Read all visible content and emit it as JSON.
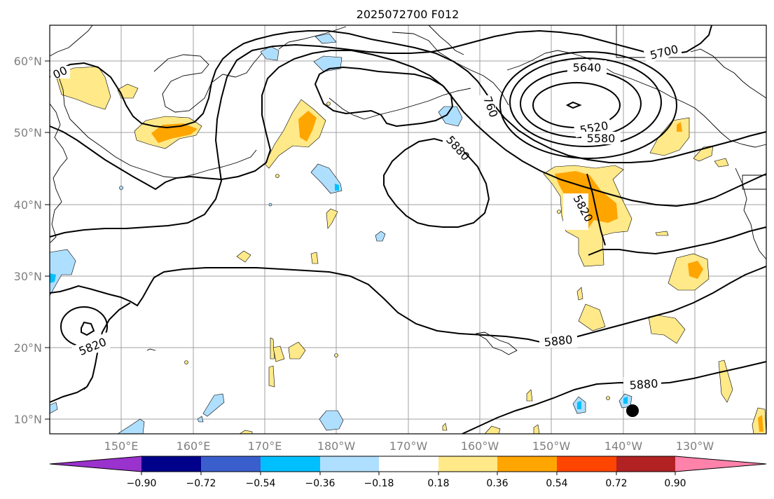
{
  "title": "2025072700 F012",
  "lat_labels": [
    "60°N",
    "50°N",
    "40°N",
    "30°N",
    "20°N",
    "10°N"
  ],
  "lon_labels": [
    "150°E",
    "160°E",
    "170°E",
    "180°W",
    "170°W",
    "160°W",
    "150°W",
    "140°W",
    "130°W"
  ],
  "contour_labels": [
    "5700",
    "5640",
    "760",
    "5520",
    "5580",
    "5880",
    "5820",
    "5880",
    "5880",
    "5820",
    "00"
  ],
  "colorbar": {
    "tick_labels": [
      "−0.90",
      "−0.72",
      "−0.54",
      "−0.36",
      "−0.18",
      "0.18",
      "0.36",
      "0.54",
      "0.72",
      "0.90"
    ],
    "colors": [
      "#9a32cd",
      "#00008b",
      "#3a5fcd",
      "#00bfff",
      "#afdfff",
      "#ffffff",
      "#ffe989",
      "#ffa500",
      "#ff4500",
      "#b22222",
      "#ff82ab"
    ]
  },
  "colors": {
    "shade_weak_positive": "#ffe989",
    "shade_strong_positive": "#ffa500",
    "shade_weak_negative": "#afdfff",
    "shade_strong_negative": "#00bfff",
    "contour": "#000000",
    "tick_label": "#7f7f7f"
  },
  "map": {
    "lat_range": [
      8,
      65
    ],
    "lon_range": [
      140,
      240
    ],
    "grid_lat_step": 10,
    "grid_lon_step": 10,
    "contour_field": "500 hPa height",
    "contour_interval": 60,
    "marker": "black-dot"
  }
}
